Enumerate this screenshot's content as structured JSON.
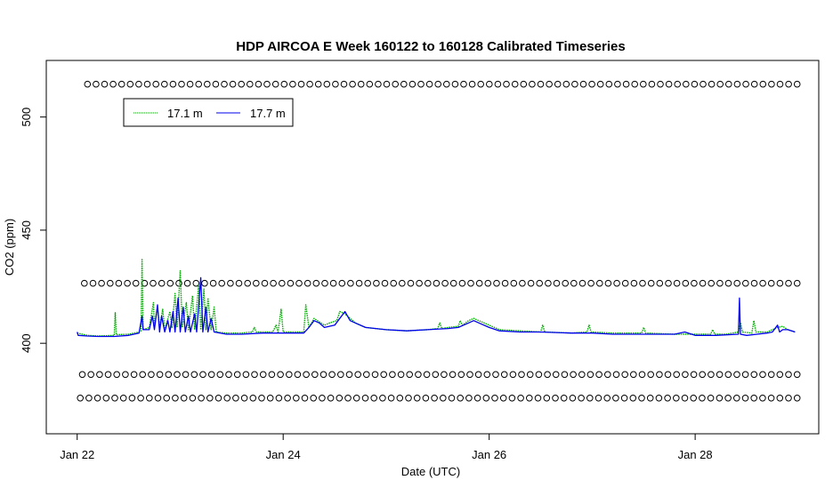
{
  "chart_data": {
    "type": "line",
    "title": "HDP AIRCOA E  Week 160122 to 160128  Calibrated Timeseries",
    "xlabel": "Date (UTC)",
    "ylabel": "CO2 (ppm)",
    "x_unit": "days (January 2016)",
    "xlim": [
      21.7,
      29.2
    ],
    "ylim": [
      360,
      525
    ],
    "x_ticks": [
      {
        "value": 22,
        "label": "Jan 22"
      },
      {
        "value": 24,
        "label": "Jan 24"
      },
      {
        "value": 26,
        "label": "Jan 26"
      },
      {
        "value": 28,
        "label": "Jan 28"
      }
    ],
    "y_ticks": [
      400,
      450,
      500
    ],
    "grid": false,
    "legend_position": "top-left",
    "series": [
      {
        "name": "17.1 m",
        "color": "#00aa00",
        "line_style": "dotted",
        "points": [
          [
            22.0,
            404.5
          ],
          [
            22.1,
            403.5
          ],
          [
            22.2,
            403.2
          ],
          [
            22.36,
            403.5
          ],
          [
            22.37,
            413.5
          ],
          [
            22.38,
            403.8
          ],
          [
            22.5,
            404
          ],
          [
            22.6,
            405
          ],
          [
            22.62,
            405.5
          ],
          [
            22.63,
            437
          ],
          [
            22.64,
            406
          ],
          [
            22.7,
            407
          ],
          [
            22.74,
            418
          ],
          [
            22.75,
            408
          ],
          [
            22.78,
            416
          ],
          [
            22.8,
            407
          ],
          [
            22.83,
            415
          ],
          [
            22.85,
            406
          ],
          [
            22.9,
            414
          ],
          [
            22.92,
            407
          ],
          [
            22.95,
            422
          ],
          [
            22.97,
            407
          ],
          [
            23.0,
            432
          ],
          [
            23.02,
            407
          ],
          [
            23.06,
            418
          ],
          [
            23.08,
            406
          ],
          [
            23.12,
            421
          ],
          [
            23.14,
            406
          ],
          [
            23.18,
            426
          ],
          [
            23.2,
            406
          ],
          [
            23.23,
            424
          ],
          [
            23.25,
            406
          ],
          [
            23.27,
            420
          ],
          [
            23.3,
            406
          ],
          [
            23.33,
            416
          ],
          [
            23.35,
            405
          ],
          [
            23.45,
            404.5
          ],
          [
            23.6,
            404.5
          ],
          [
            23.7,
            405
          ],
          [
            23.72,
            407
          ],
          [
            23.74,
            405
          ],
          [
            23.9,
            405
          ],
          [
            23.93,
            408
          ],
          [
            23.95,
            405
          ],
          [
            23.98,
            415
          ],
          [
            24.0,
            405
          ],
          [
            24.2,
            405
          ],
          [
            24.22,
            417
          ],
          [
            24.25,
            407
          ],
          [
            24.3,
            411
          ],
          [
            24.4,
            408
          ],
          [
            24.45,
            409
          ],
          [
            24.52,
            410
          ],
          [
            24.55,
            414
          ],
          [
            24.6,
            413
          ],
          [
            24.65,
            411
          ],
          [
            24.7,
            409
          ],
          [
            24.8,
            407
          ],
          [
            25.0,
            406
          ],
          [
            25.2,
            405.5
          ],
          [
            25.4,
            406
          ],
          [
            25.5,
            406.5
          ],
          [
            25.52,
            409
          ],
          [
            25.54,
            406.5
          ],
          [
            25.6,
            407
          ],
          [
            25.7,
            407.5
          ],
          [
            25.72,
            410
          ],
          [
            25.74,
            408
          ],
          [
            25.8,
            410
          ],
          [
            25.85,
            411
          ],
          [
            25.9,
            410
          ],
          [
            26.0,
            408
          ],
          [
            26.1,
            406
          ],
          [
            26.3,
            405.5
          ],
          [
            26.5,
            405
          ],
          [
            26.52,
            408
          ],
          [
            26.54,
            405
          ],
          [
            26.8,
            404.5
          ],
          [
            26.95,
            405
          ],
          [
            26.97,
            408
          ],
          [
            26.99,
            405
          ],
          [
            27.2,
            404.5
          ],
          [
            27.48,
            404.5
          ],
          [
            27.5,
            407
          ],
          [
            27.52,
            404.5
          ],
          [
            27.8,
            404
          ],
          [
            28.0,
            404
          ],
          [
            28.15,
            404
          ],
          [
            28.17,
            406
          ],
          [
            28.19,
            404
          ],
          [
            28.3,
            404
          ],
          [
            28.42,
            405
          ],
          [
            28.44,
            409
          ],
          [
            28.46,
            405
          ],
          [
            28.55,
            404.5
          ],
          [
            28.57,
            410
          ],
          [
            28.59,
            405
          ],
          [
            28.7,
            405
          ],
          [
            28.75,
            406
          ],
          [
            28.8,
            407
          ],
          [
            28.85,
            407.5
          ],
          [
            28.9,
            406
          ],
          [
            28.97,
            405
          ]
        ]
      },
      {
        "name": "17.7 m",
        "color": "#0000ee",
        "line_style": "solid",
        "points": [
          [
            22.0,
            405
          ],
          [
            22.01,
            403.5
          ],
          [
            22.1,
            403.2
          ],
          [
            22.2,
            403
          ],
          [
            22.36,
            403
          ],
          [
            22.5,
            403.5
          ],
          [
            22.55,
            404
          ],
          [
            22.6,
            404.5
          ],
          [
            22.63,
            412
          ],
          [
            22.64,
            406
          ],
          [
            22.7,
            406
          ],
          [
            22.73,
            412
          ],
          [
            22.75,
            406
          ],
          [
            22.78,
            417
          ],
          [
            22.8,
            405
          ],
          [
            22.82,
            412
          ],
          [
            22.85,
            405
          ],
          [
            22.88,
            410
          ],
          [
            22.9,
            405
          ],
          [
            22.93,
            414
          ],
          [
            22.95,
            405
          ],
          [
            22.98,
            420
          ],
          [
            23.0,
            405
          ],
          [
            23.03,
            416
          ],
          [
            23.05,
            405
          ],
          [
            23.08,
            412
          ],
          [
            23.1,
            405
          ],
          [
            23.14,
            413
          ],
          [
            23.16,
            405
          ],
          [
            23.2,
            429
          ],
          [
            23.22,
            405
          ],
          [
            23.25,
            416
          ],
          [
            23.27,
            405
          ],
          [
            23.3,
            411
          ],
          [
            23.33,
            405
          ],
          [
            23.45,
            404
          ],
          [
            23.6,
            404
          ],
          [
            23.8,
            404.5
          ],
          [
            24.0,
            404.5
          ],
          [
            24.2,
            404.5
          ],
          [
            24.25,
            407
          ],
          [
            24.3,
            410
          ],
          [
            24.35,
            409
          ],
          [
            24.4,
            407
          ],
          [
            24.5,
            408
          ],
          [
            24.55,
            411
          ],
          [
            24.6,
            414
          ],
          [
            24.65,
            410
          ],
          [
            24.7,
            409
          ],
          [
            24.8,
            407
          ],
          [
            25.0,
            406
          ],
          [
            25.2,
            405.5
          ],
          [
            25.4,
            406
          ],
          [
            25.6,
            406.5
          ],
          [
            25.7,
            407
          ],
          [
            25.8,
            409
          ],
          [
            25.85,
            410
          ],
          [
            25.9,
            409
          ],
          [
            26.0,
            407
          ],
          [
            26.1,
            405.5
          ],
          [
            26.3,
            405
          ],
          [
            26.5,
            405
          ],
          [
            26.8,
            404.5
          ],
          [
            27.0,
            404.5
          ],
          [
            27.2,
            404
          ],
          [
            27.5,
            404
          ],
          [
            27.8,
            404
          ],
          [
            27.9,
            405
          ],
          [
            28.0,
            403.5
          ],
          [
            28.2,
            403.5
          ],
          [
            28.42,
            404
          ],
          [
            28.43,
            420
          ],
          [
            28.44,
            404
          ],
          [
            28.5,
            403.5
          ],
          [
            28.6,
            404
          ],
          [
            28.7,
            404.5
          ],
          [
            28.75,
            405
          ],
          [
            28.8,
            408
          ],
          [
            28.82,
            405
          ],
          [
            28.85,
            406
          ],
          [
            28.9,
            406
          ],
          [
            28.97,
            405
          ]
        ]
      }
    ],
    "marker_rows": [
      {
        "y": 514.5,
        "x_start": 22.1,
        "x_end": 28.99,
        "count": 84
      },
      {
        "y": 426.5,
        "x_start": 22.07,
        "x_end": 28.99,
        "count": 84
      },
      {
        "y": 386.2,
        "x_start": 22.05,
        "x_end": 28.99,
        "count": 84
      },
      {
        "y": 375.8,
        "x_start": 22.03,
        "x_end": 28.99,
        "count": 84
      }
    ]
  }
}
